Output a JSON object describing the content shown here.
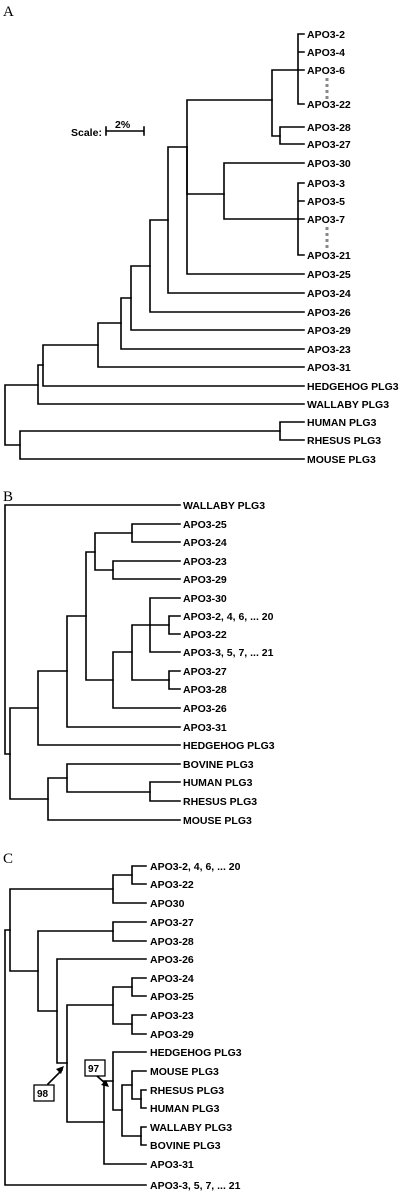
{
  "panels": {
    "a": {
      "letter": "A",
      "scale_label": "Scale:",
      "scale_value": "2%",
      "leaves": [
        "APO3-2",
        "APO3-4",
        "APO3-6",
        "APO3-22",
        "APO3-28",
        "APO3-27",
        "APO3-30",
        "APO3-3",
        "APO3-5",
        "APO3-7",
        "APO3-21",
        "APO3-25",
        "APO3-24",
        "APO3-26",
        "APO3-29",
        "APO3-23",
        "APO3-31",
        "HEDGEHOG PLG3",
        "WALLABY PLG3",
        "HUMAN PLG3",
        "RHESUS PLG3",
        "MOUSE PLG3"
      ]
    },
    "b": {
      "letter": "B",
      "leaves": [
        "WALLABY PLG3",
        "APO3-25",
        "APO3-24",
        "APO3-23",
        "APO3-29",
        "APO3-30",
        "APO3-2, 4, 6, ... 20",
        "APO3-22",
        "APO3-3, 5, 7, ... 21",
        "APO3-27",
        "APO3-28",
        "APO3-26",
        "APO3-31",
        "HEDGEHOG PLG3",
        "BOVINE PLG3",
        "HUMAN PLG3",
        "RHESUS PLG3",
        "MOUSE PLG3"
      ]
    },
    "c": {
      "letter": "C",
      "leaves": [
        "APO3-2, 4, 6, ... 20",
        "APO3-22",
        "APO30",
        "APO3-27",
        "APO3-28",
        "APO3-26",
        "APO3-24",
        "APO3-25",
        "APO3-23",
        "APO3-29",
        "HEDGEHOG PLG3",
        "MOUSE PLG3",
        "RHESUS PLG3",
        "HUMAN PLG3",
        "WALLABY PLG3",
        "BOVINE PLG3",
        "APO3-31",
        "APO3-3, 5, 7, ... 21"
      ],
      "bootstrap": [
        "98",
        "97"
      ]
    }
  }
}
